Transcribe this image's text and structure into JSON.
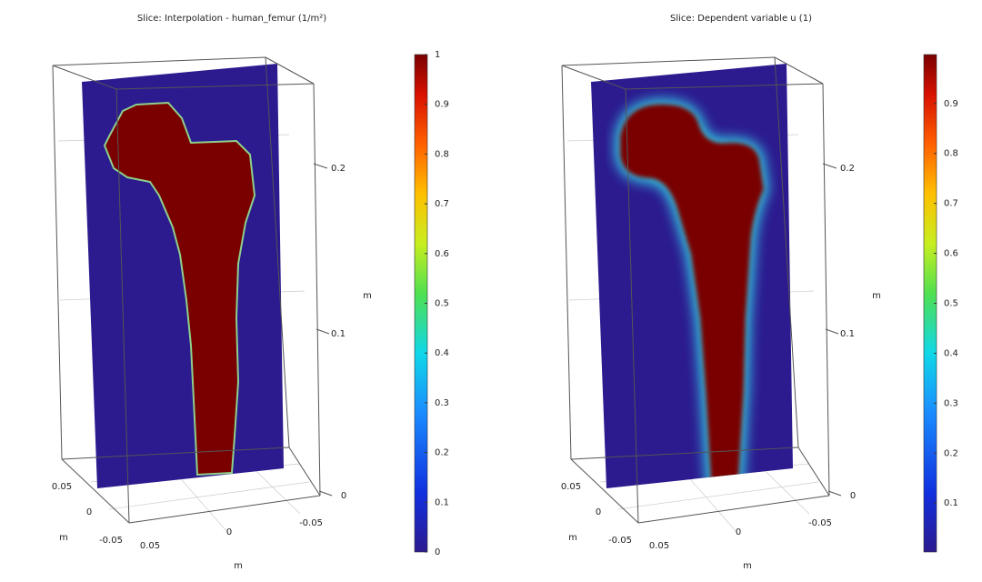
{
  "panels": [
    {
      "title": "Slice: Interpolation - human_femur (1/m²)",
      "colorbar": {
        "lim": [
          0,
          1
        ],
        "ticks": [
          0,
          0.1,
          0.2,
          0.3,
          0.4,
          0.5,
          0.6,
          0.7,
          0.8,
          0.9,
          1
        ]
      },
      "axis_labels": [
        "0.2",
        "0.1",
        "0",
        "m",
        "0.05",
        "0",
        "m",
        "-0.05",
        "0.05",
        "0",
        "-0.05",
        "m"
      ]
    },
    {
      "title": "Slice: Dependent variable u (1)",
      "colorbar": {
        "lim": [
          0.002,
          0.998
        ],
        "ticks": [
          0.1,
          0.2,
          0.3,
          0.4,
          0.5,
          0.6,
          0.7,
          0.8,
          0.9
        ]
      },
      "axis_labels": [
        "0.2",
        "0.1",
        "0",
        "m",
        "0.05",
        "0",
        "m",
        "-0.05",
        "0.05",
        "0",
        "-0.05",
        "m"
      ]
    }
  ]
}
